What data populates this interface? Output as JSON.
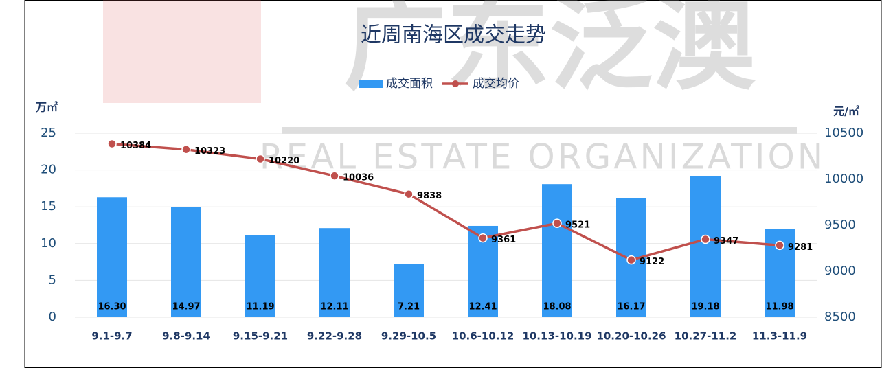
{
  "chart_data": {
    "type": "bar",
    "title": "近周南海区成交走势",
    "watermark": [
      "广东泛澳",
      "REAL ESTATE ORGANIZATION"
    ],
    "ylabel": "万㎡",
    "y2label": "元/㎡",
    "categories": [
      "9.1-9.7",
      "9.8-9.14",
      "9.15-9.21",
      "9.22-9.28",
      "9.29-10.5",
      "10.6-10.12",
      "10.13-10.19",
      "10.20-10.26",
      "10.27-11.2",
      "11.3-11.9"
    ],
    "series": [
      {
        "name": "成交面积",
        "type": "bar",
        "color": "#3399f3",
        "values": [
          16.3,
          14.97,
          11.19,
          12.11,
          7.21,
          12.41,
          18.08,
          16.17,
          19.18,
          11.98
        ],
        "value_labels": [
          "16.30",
          "14.97",
          "11.19",
          "12.11",
          "7.21",
          "12.41",
          "18.08",
          "16.17",
          "19.18",
          "11.98"
        ]
      },
      {
        "name": "成交均价",
        "type": "line",
        "axis": "y2",
        "color": "#c0504d",
        "values": [
          10384,
          10323,
          10220,
          10036,
          9838,
          9361,
          9521,
          9122,
          9347,
          9281
        ]
      }
    ],
    "ylim": [
      0,
      25
    ],
    "yticks": [
      0,
      5,
      10,
      15,
      20,
      25
    ],
    "y2lim": [
      8500,
      10500
    ],
    "y2ticks": [
      8500,
      9000,
      9500,
      10000,
      10500
    ],
    "grid": true
  }
}
